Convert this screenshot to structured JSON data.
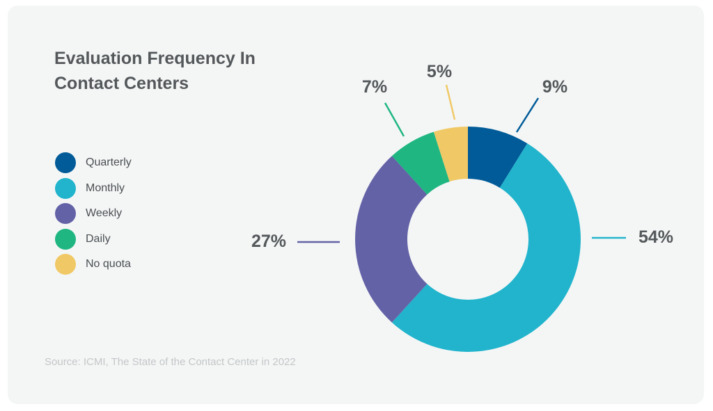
{
  "chart_data": {
    "type": "pie",
    "title_lines": [
      "Evaluation Frequency In",
      "Contact Centers"
    ],
    "slices": [
      {
        "name": "Quarterly",
        "value": 9,
        "label": "9%",
        "color": "#005b98"
      },
      {
        "name": "Monthly",
        "value": 54,
        "label": "54%",
        "color": "#21b4cc"
      },
      {
        "name": "Weekly",
        "value": 27,
        "label": "27%",
        "color": "#6462a6"
      },
      {
        "name": "Daily",
        "value": 7,
        "label": "7%",
        "color": "#1fb681"
      },
      {
        "name": "No quota",
        "value": 5,
        "label": "5%",
        "color": "#f0c966"
      }
    ],
    "donut": true,
    "legend_placement": "left",
    "source": "Source: ICMI, The State of the Contact Center in 2022"
  }
}
